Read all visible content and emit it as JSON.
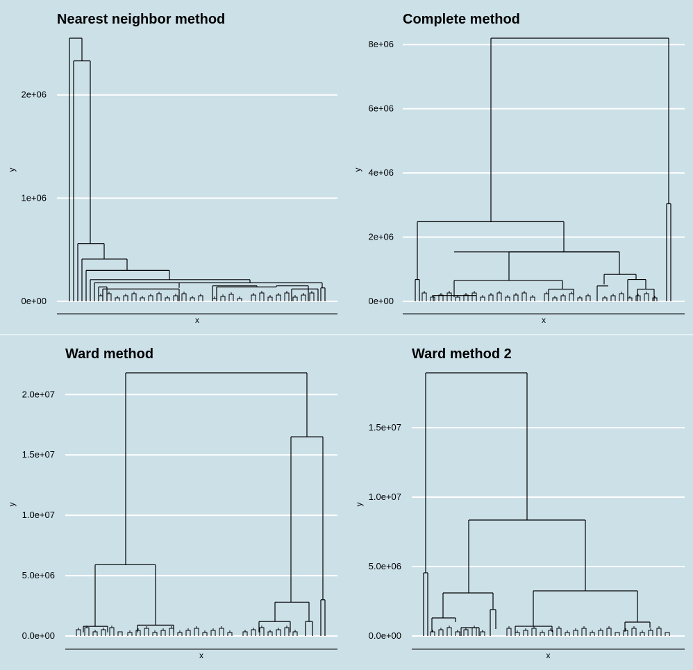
{
  "chart_data": [
    {
      "type": "dendrogram",
      "title": "Nearest neighbor method",
      "xlabel": "x",
      "ylabel": "y",
      "ylim": [
        0,
        2550000
      ],
      "yticks": [
        0,
        1000000,
        2000000
      ],
      "ytick_labels": [
        "0e+00",
        "1e+06",
        "2e+06"
      ],
      "grid": "horizontal",
      "major_merge_heights": [
        2550000,
        2330000,
        560000,
        410000,
        300000,
        210000,
        180000,
        130000
      ]
    },
    {
      "type": "dendrogram",
      "title": "Complete method",
      "xlabel": "x",
      "ylabel": "y",
      "ylim": [
        0,
        8200000
      ],
      "yticks": [
        0,
        2000000,
        4000000,
        6000000,
        8000000
      ],
      "ytick_labels": [
        "0e+00",
        "2e+06",
        "4e+06",
        "6e+06",
        "8e+06"
      ],
      "grid": "horizontal",
      "major_merge_heights": [
        8200000,
        3040000,
        2480000,
        1540000,
        840000,
        680000,
        650000
      ]
    },
    {
      "type": "dendrogram",
      "title": "Ward method",
      "xlabel": "x",
      "ylabel": "y",
      "ylim": [
        0,
        21800000
      ],
      "yticks": [
        0,
        5000000,
        10000000,
        15000000,
        20000000
      ],
      "ytick_labels": [
        "0.0e+00",
        "5.0e+06",
        "1.0e+07",
        "1.5e+07",
        "2.0e+07"
      ],
      "grid": "horizontal",
      "major_merge_heights": [
        21800000,
        16500000,
        5900000,
        3000000,
        2800000,
        1200000,
        900000,
        800000
      ]
    },
    {
      "type": "dendrogram",
      "title": "Ward method 2",
      "xlabel": "x",
      "ylabel": "y",
      "ylim": [
        0,
        18950000
      ],
      "yticks": [
        0,
        5000000,
        10000000,
        15000000
      ],
      "ytick_labels": [
        "0.0e+00",
        "5.0e+06",
        "1.0e+07",
        "1.5e+07"
      ],
      "grid": "horizontal",
      "major_merge_heights": [
        18950000,
        8350000,
        4550000,
        3250000,
        3100000,
        1900000,
        1000000,
        700000
      ]
    }
  ]
}
